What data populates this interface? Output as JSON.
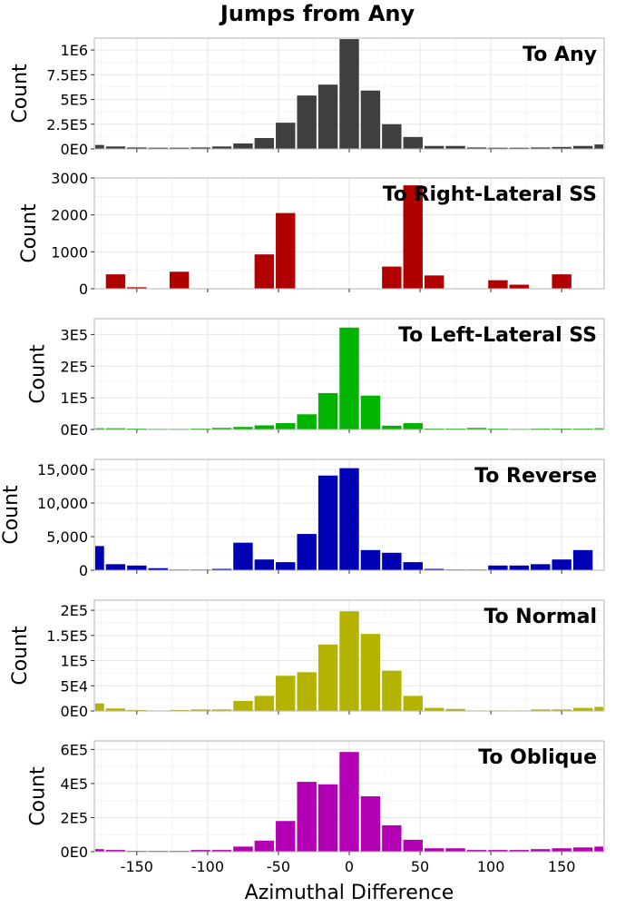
{
  "title": "Jumps from Any",
  "xlabel": "Azimuthal Difference",
  "ylabel": "Count",
  "chart_data": [
    {
      "type": "bar",
      "title": "To Any",
      "color": "#3f3f3f",
      "ylabel": "Count",
      "xlabel": "Azimuthal Difference",
      "ylim": [
        0,
        1120000
      ],
      "yticks": [
        0,
        250000,
        500000,
        750000,
        1000000
      ],
      "ytick_labels": [
        "0E0",
        "2.5E5",
        "5E5",
        "7.5E5",
        "1E6"
      ],
      "bin_centers": [
        -180,
        -165,
        -150,
        -135,
        -120,
        -105,
        -90,
        -75,
        -60,
        -45,
        -30,
        -15,
        0,
        15,
        30,
        45,
        60,
        75,
        90,
        105,
        120,
        135,
        150,
        165,
        180
      ],
      "values": [
        40000,
        25000,
        15000,
        12000,
        12000,
        15000,
        25000,
        55000,
        110000,
        265000,
        540000,
        650000,
        1110000,
        590000,
        250000,
        120000,
        30000,
        30000,
        15000,
        12000,
        12000,
        15000,
        20000,
        30000,
        45000
      ]
    },
    {
      "type": "bar",
      "title": "To Right-Lateral SS",
      "color": "#b00000",
      "ylabel": "Count",
      "xlabel": "Azimuthal Difference",
      "ylim": [
        0,
        3000
      ],
      "yticks": [
        0,
        1000,
        2000,
        3000
      ],
      "ytick_labels": [
        "0",
        "1000",
        "2000",
        "3000"
      ],
      "bin_centers": [
        -180,
        -165,
        -150,
        -135,
        -120,
        -105,
        -90,
        -75,
        -60,
        -45,
        -30,
        -15,
        0,
        15,
        30,
        45,
        60,
        75,
        90,
        105,
        120,
        135,
        150,
        165,
        180
      ],
      "values": [
        0,
        390,
        40,
        0,
        460,
        0,
        0,
        0,
        930,
        2050,
        0,
        0,
        0,
        0,
        600,
        2800,
        360,
        10,
        0,
        230,
        110,
        0,
        390,
        0,
        0
      ]
    },
    {
      "type": "bar",
      "title": "To Left-Lateral SS",
      "color": "#00b400",
      "ylabel": "Count",
      "xlabel": "Azimuthal Difference",
      "ylim": [
        0,
        350000
      ],
      "yticks": [
        0,
        100000,
        200000,
        300000
      ],
      "ytick_labels": [
        "0E0",
        "1E5",
        "2E5",
        "3E5"
      ],
      "bin_centers": [
        -180,
        -165,
        -150,
        -135,
        -120,
        -105,
        -90,
        -75,
        -60,
        -45,
        -30,
        -15,
        0,
        15,
        30,
        45,
        60,
        75,
        90,
        105,
        120,
        135,
        150,
        165,
        180
      ],
      "values": [
        4000,
        4000,
        3000,
        2000,
        2000,
        3000,
        5000,
        8000,
        13000,
        20000,
        48000,
        115000,
        322000,
        107000,
        12000,
        20000,
        3000,
        3000,
        5000,
        3000,
        2000,
        3000,
        3000,
        3000,
        4000
      ]
    },
    {
      "type": "bar",
      "title": "To Reverse",
      "color": "#0000b4",
      "ylabel": "Count",
      "xlabel": "Azimuthal Difference",
      "ylim": [
        0,
        16500
      ],
      "yticks": [
        0,
        5000,
        10000,
        15000
      ],
      "ytick_labels": [
        "0",
        "5,000",
        "10,000",
        "15,000"
      ],
      "bin_centers": [
        -180,
        -165,
        -150,
        -135,
        -120,
        -105,
        -90,
        -75,
        -60,
        -45,
        -30,
        -15,
        0,
        15,
        30,
        45,
        60,
        75,
        90,
        105,
        120,
        135,
        150,
        165,
        180
      ],
      "values": [
        3600,
        900,
        700,
        300,
        100,
        100,
        200,
        4100,
        1600,
        1200,
        5400,
        14100,
        15200,
        3000,
        2600,
        1200,
        200,
        100,
        100,
        700,
        700,
        900,
        1600,
        3000,
        0
      ]
    },
    {
      "type": "bar",
      "title": "To Normal",
      "color": "#b4b400",
      "ylabel": "Count",
      "xlabel": "Azimuthal Difference",
      "ylim": [
        0,
        220000
      ],
      "yticks": [
        0,
        50000,
        100000,
        150000,
        200000
      ],
      "ytick_labels": [
        "0E0",
        "5E4",
        "1E5",
        "1.5E5",
        "2E5"
      ],
      "bin_centers": [
        -180,
        -165,
        -150,
        -135,
        -120,
        -105,
        -90,
        -75,
        -60,
        -45,
        -30,
        -15,
        0,
        15,
        30,
        45,
        60,
        75,
        90,
        105,
        120,
        135,
        150,
        165,
        180
      ],
      "values": [
        15000,
        5000,
        2000,
        1000,
        2000,
        3000,
        3000,
        20000,
        30000,
        70000,
        77000,
        132000,
        198000,
        153000,
        80000,
        30000,
        6000,
        4000,
        1000,
        1000,
        1000,
        3000,
        3000,
        6000,
        8000
      ]
    },
    {
      "type": "bar",
      "title": "To Oblique",
      "color": "#b400b4",
      "ylabel": "Count",
      "xlabel": "Azimuthal Difference",
      "ylim": [
        0,
        650000
      ],
      "yticks": [
        0,
        200000,
        400000,
        600000
      ],
      "ytick_labels": [
        "0E0",
        "2E5",
        "4E5",
        "6E5"
      ],
      "bin_centers": [
        -180,
        -165,
        -150,
        -135,
        -120,
        -105,
        -90,
        -75,
        -60,
        -45,
        -30,
        -15,
        0,
        15,
        30,
        45,
        60,
        75,
        90,
        105,
        120,
        135,
        150,
        165,
        180
      ],
      "values": [
        15000,
        10000,
        5000,
        5000,
        5000,
        10000,
        10000,
        30000,
        65000,
        180000,
        410000,
        395000,
        585000,
        325000,
        155000,
        70000,
        20000,
        20000,
        10000,
        10000,
        10000,
        15000,
        20000,
        25000,
        30000
      ]
    }
  ],
  "xaxis": {
    "lim": [
      -180,
      180
    ],
    "ticks": [
      -150,
      -100,
      -50,
      0,
      50,
      100,
      150
    ],
    "tick_labels": [
      "-150",
      "-100",
      "-50",
      "0",
      "50",
      "100",
      "150"
    ],
    "bin_width": 15
  },
  "grid": true
}
